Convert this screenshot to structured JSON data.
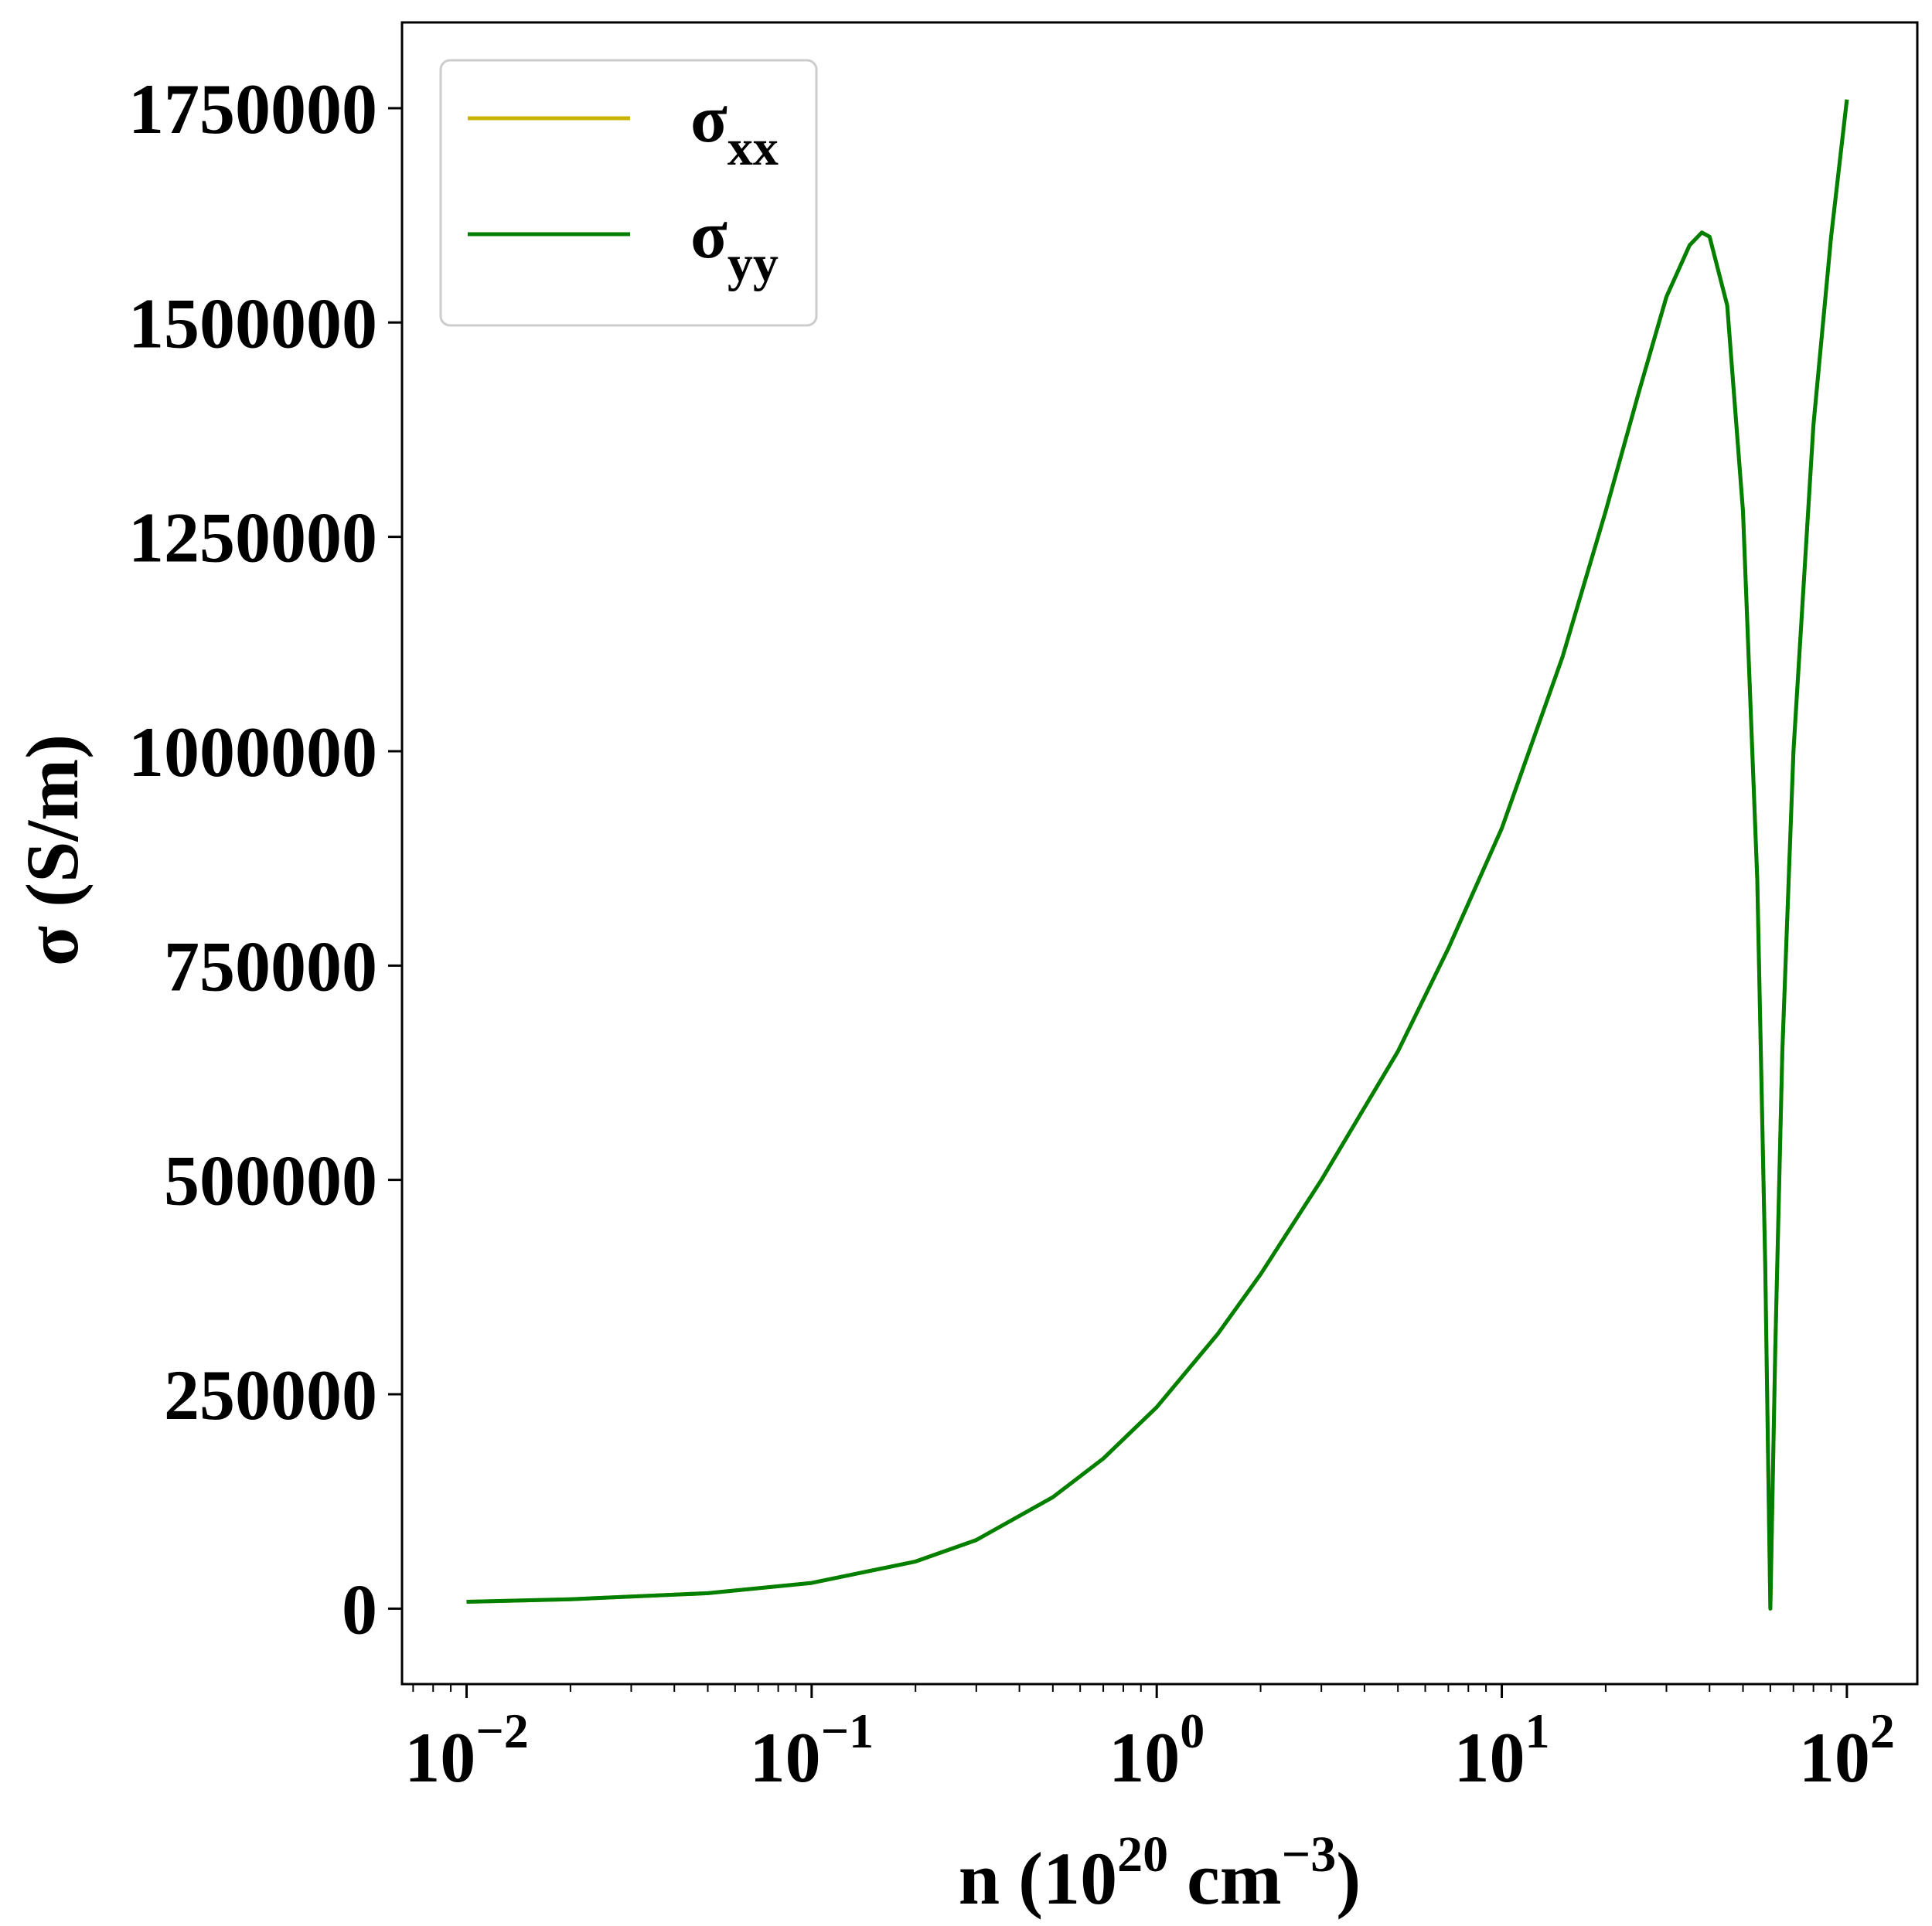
{
  "chart_data": {
    "type": "line",
    "xscale": "log",
    "xlabel_parts": {
      "base": "n (10",
      "sup1": "20",
      "mid": " cm",
      "sup2": "−3",
      "end": ")"
    },
    "ylabel": "σ (S/m)",
    "xlim": [
      0.0065,
      160
    ],
    "ylim": [
      -88000,
      1850000
    ],
    "grid": false,
    "legend_position": "top-left",
    "x_ticks": [
      {
        "value": 0.01,
        "base": "10",
        "exp": "−2"
      },
      {
        "value": 0.1,
        "base": "10",
        "exp": "−1"
      },
      {
        "value": 1,
        "base": "10",
        "exp": "0"
      },
      {
        "value": 10,
        "base": "10",
        "exp": "1"
      },
      {
        "value": 100,
        "base": "10",
        "exp": "2"
      }
    ],
    "y_ticks": [
      {
        "value": 0,
        "label": "0"
      },
      {
        "value": 250000,
        "label": "250000"
      },
      {
        "value": 500000,
        "label": "500000"
      },
      {
        "value": 750000,
        "label": "750000"
      },
      {
        "value": 1000000,
        "label": "1000000"
      },
      {
        "value": 1250000,
        "label": "1250000"
      },
      {
        "value": 1500000,
        "label": "1500000"
      },
      {
        "value": 1750000,
        "label": "1750000"
      }
    ],
    "series": [
      {
        "name_base": "σ",
        "name_sub": "xx",
        "color": "#c8b400",
        "x": [
          0.01,
          0.02,
          0.05,
          0.1,
          0.2,
          0.3,
          0.5,
          0.7,
          1,
          1.5,
          2,
          3,
          5,
          7,
          10,
          15,
          20,
          25,
          30,
          35,
          38,
          40,
          45,
          50,
          55,
          58,
          60,
          62,
          65,
          70,
          80,
          90,
          100
        ],
        "y": [
          8000,
          11000,
          18000,
          30000,
          55000,
          80000,
          130000,
          175000,
          235000,
          320000,
          390000,
          500000,
          650000,
          770000,
          910000,
          1110000,
          1280000,
          1420000,
          1530000,
          1590000,
          1605000,
          1600000,
          1520000,
          1280000,
          850000,
          400000,
          0,
          300000,
          650000,
          1000000,
          1380000,
          1600000,
          1760000
        ]
      },
      {
        "name_base": "σ",
        "name_sub": "yy",
        "color": "#007f00",
        "x": [
          0.01,
          0.02,
          0.05,
          0.1,
          0.2,
          0.3,
          0.5,
          0.7,
          1,
          1.5,
          2,
          3,
          5,
          7,
          10,
          15,
          20,
          25,
          30,
          35,
          38,
          40,
          45,
          50,
          55,
          58,
          60,
          62,
          65,
          70,
          80,
          90,
          100
        ],
        "y": [
          8000,
          11000,
          18000,
          30000,
          55000,
          80000,
          130000,
          175000,
          235000,
          320000,
          390000,
          500000,
          650000,
          770000,
          910000,
          1110000,
          1280000,
          1420000,
          1530000,
          1590000,
          1605000,
          1600000,
          1520000,
          1280000,
          850000,
          400000,
          0,
          300000,
          650000,
          1000000,
          1380000,
          1600000,
          1760000
        ]
      }
    ]
  }
}
